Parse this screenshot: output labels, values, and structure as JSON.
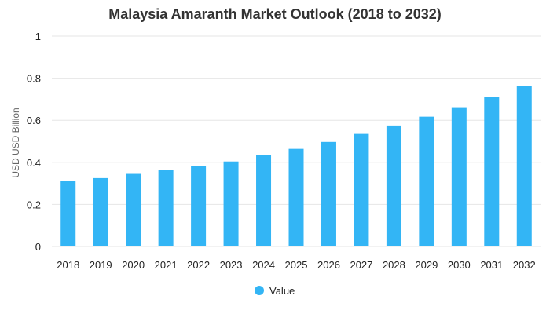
{
  "chart_data": {
    "type": "bar",
    "title": "Malaysia Amaranth Market Outlook (2018 to 2032)",
    "xlabel": "",
    "ylabel": "USD USD Billion",
    "ylim": [
      0,
      1
    ],
    "yticks": [
      "0",
      "0.2",
      "0.4",
      "0.6",
      "0.8",
      "1"
    ],
    "yticks_values": [
      0,
      0.2,
      0.4,
      0.6,
      0.8,
      1
    ],
    "categories": [
      "2018",
      "2019",
      "2020",
      "2021",
      "2022",
      "2023",
      "2024",
      "2025",
      "2026",
      "2027",
      "2028",
      "2029",
      "2030",
      "2031",
      "2032"
    ],
    "series": [
      {
        "name": "Value",
        "color": "#33b5f5",
        "values": [
          0.31,
          0.325,
          0.345,
          0.362,
          0.381,
          0.404,
          0.433,
          0.464,
          0.497,
          0.535,
          0.575,
          0.617,
          0.662,
          0.71,
          0.762
        ]
      }
    ],
    "grid": true,
    "legend_position": "bottom-center"
  }
}
